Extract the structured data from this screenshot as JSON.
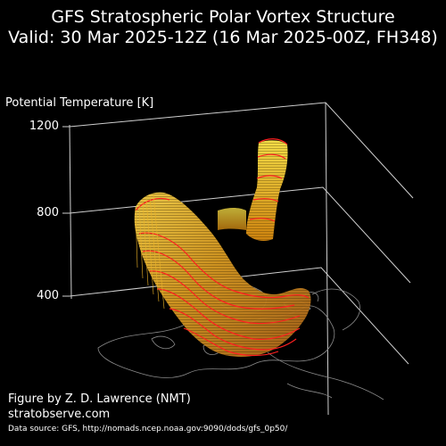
{
  "title": {
    "line1": "GFS Stratospheric Polar Vortex Structure",
    "line2": "Valid: 30 Mar 2025-12Z  (16 Mar 2025-00Z, FH348)"
  },
  "axis": {
    "label": "Potential Temperature [K]",
    "ticks": [
      "1200",
      "800",
      "400"
    ]
  },
  "credits": {
    "author": "Figure by Z. D. Lawrence (NMT)",
    "site": "stratobserve.com",
    "source": "Data source: GFS, http://nomads.ncep.noaa.gov:9090/dods/gfs_0p50/"
  },
  "colors": {
    "background": "#000000",
    "axis_lines": "#cfcfcf",
    "coastline": "#8a8a8a",
    "vortex_contour": "#ff2020",
    "vortex_fill_light": "#ffe84a",
    "vortex_fill_dark": "#e08a00"
  }
}
